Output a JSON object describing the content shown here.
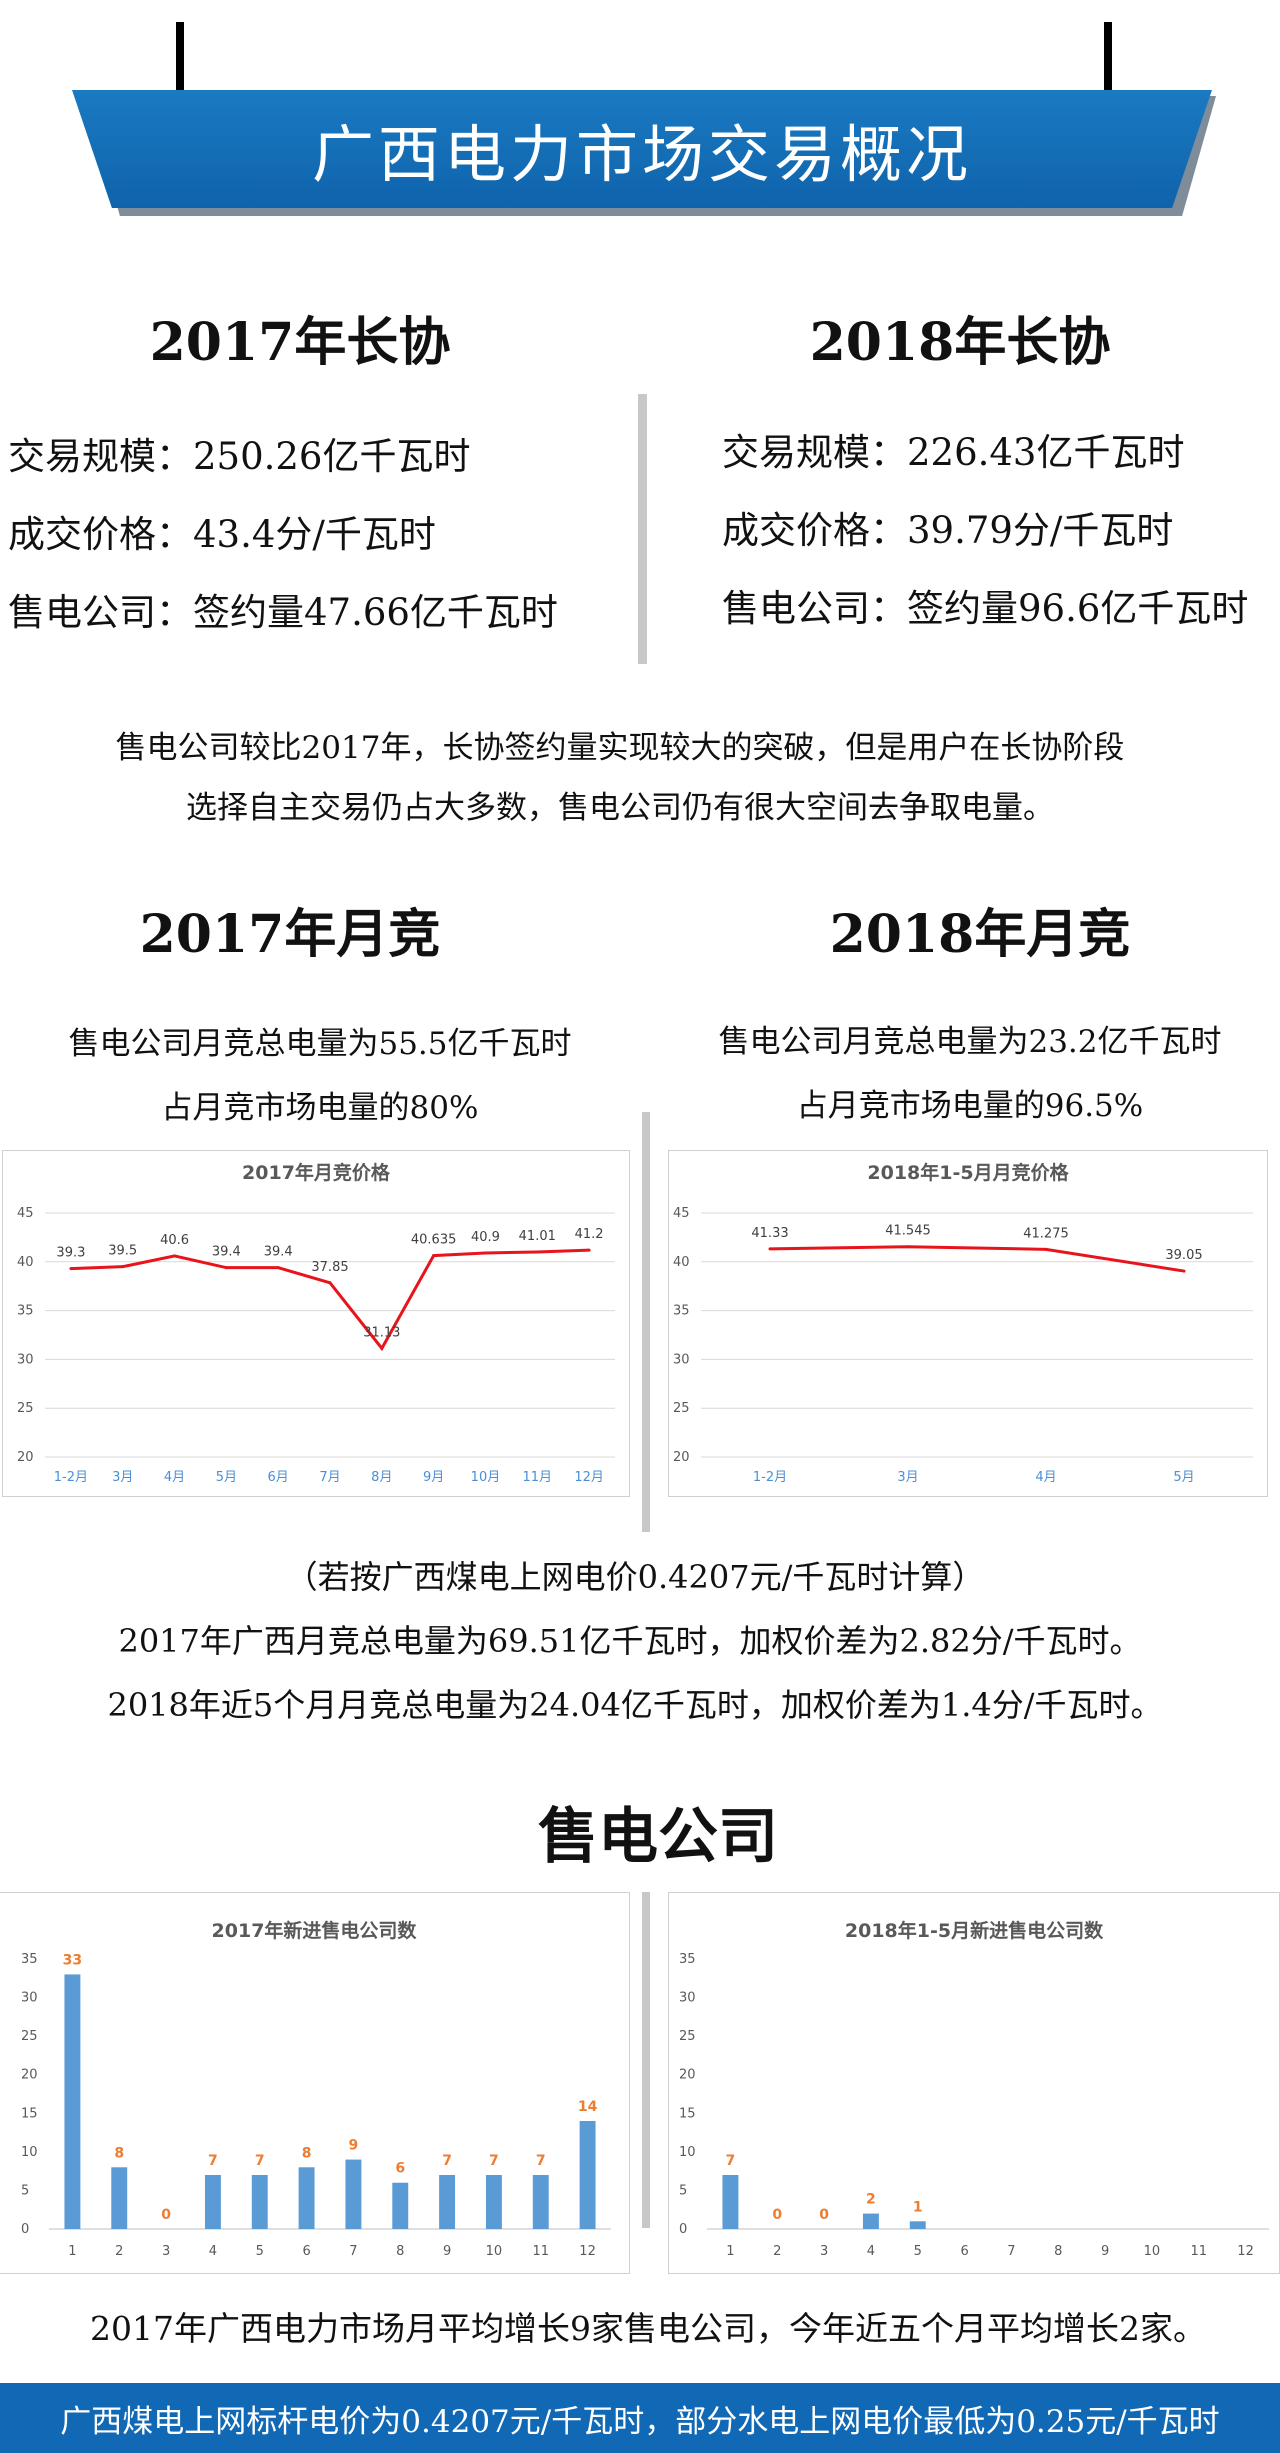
{
  "banner": {
    "title": "广西电力市场交易概况"
  },
  "long_term": {
    "y2017": {
      "heading": "2017年长协",
      "scale": "交易规模：250.26亿千瓦时",
      "price": "成交价格：43.4分/千瓦时",
      "retail": "售电公司：签约量47.66亿千瓦时"
    },
    "y2018": {
      "heading": "2018年长协",
      "scale": "交易规模：226.43亿千瓦时",
      "price": "成交价格：39.79分/千瓦时",
      "retail": "售电公司：签约量96.6亿千瓦时"
    },
    "comment_line1": "售电公司较比2017年，长协签约量实现较大的突破，但是用户在长协阶段",
    "comment_line2": "选择自主交易仍占大多数，售电公司仍有很大空间去争取电量。"
  },
  "monthly": {
    "y2017": {
      "heading": "2017年月竞",
      "line1": "售电公司月竞总电量为55.5亿千瓦时",
      "line2": "占月竞市场电量的80%"
    },
    "y2018": {
      "heading": "2018年月竞",
      "line1": "售电公司月竞总电量为23.2亿千瓦时",
      "line2": "占月竞市场电量的96.5%"
    },
    "note1": "（若按广西煤电上网电价0.4207元/千瓦时计算）",
    "note2": "2017年广西月竞总电量为69.51亿千瓦时，加权价差为2.82分/千瓦时。",
    "note3": "2018年近5个月月竞总电量为24.04亿千瓦时，加权价差为1.4分/千瓦时。"
  },
  "retailers": {
    "heading": "售电公司",
    "summary": "2017年广西电力市场月平均增长9家售电公司，今年近五个月平均增长2家。"
  },
  "footer": {
    "text": "广西煤电上网标杆电价为0.4207元/千瓦时，部分水电上网电价最低为0.25元/千瓦时"
  },
  "chart_data": [
    {
      "type": "line",
      "title": "2017年月竞价格",
      "categories": [
        "1-2月",
        "3月",
        "4月",
        "5月",
        "6月",
        "7月",
        "8月",
        "9月",
        "10月",
        "11月",
        "12月"
      ],
      "values": [
        39.3,
        39.5,
        40.6,
        39.4,
        39.4,
        37.85,
        31.13,
        40.635,
        40.9,
        41.01,
        41.2
      ],
      "labels": [
        "39.3",
        "39.5",
        "40.6",
        "39.4",
        "39.4",
        "37.85",
        "31.13",
        "40.635",
        "40.9",
        "41.01",
        "41.2"
      ],
      "yticks": [
        20,
        25,
        30,
        35,
        40,
        45
      ],
      "ylim": [
        20,
        45
      ],
      "color": "#e8141c",
      "grid": true
    },
    {
      "type": "line",
      "title": "2018年1-5月月竞价格",
      "categories": [
        "1-2月",
        "3月",
        "4月",
        "5月"
      ],
      "values": [
        41.33,
        41.545,
        41.275,
        39.05
      ],
      "labels": [
        "41.33",
        "41.545",
        "41.275",
        "39.05"
      ],
      "yticks": [
        20,
        25,
        30,
        35,
        40,
        45
      ],
      "ylim": [
        20,
        45
      ],
      "color": "#e8141c",
      "grid": true
    },
    {
      "type": "bar",
      "title": "2017年新进售电公司数",
      "categories": [
        "1",
        "2",
        "3",
        "4",
        "5",
        "6",
        "7",
        "8",
        "9",
        "10",
        "11",
        "12"
      ],
      "values": [
        33,
        8,
        0,
        7,
        7,
        8,
        9,
        6,
        7,
        7,
        7,
        14
      ],
      "labels": [
        "33",
        "8",
        "0",
        "7",
        "7",
        "8",
        "9",
        "6",
        "7",
        "7",
        "7",
        "14"
      ],
      "yticks": [
        0,
        5,
        10,
        15,
        20,
        25,
        30,
        35
      ],
      "ylim": [
        0,
        35
      ],
      "color": "#5b9bd5",
      "grid": false
    },
    {
      "type": "bar",
      "title": "2018年1-5月新进售电公司数",
      "categories": [
        "1",
        "2",
        "3",
        "4",
        "5",
        "6",
        "7",
        "8",
        "9",
        "10",
        "11",
        "12"
      ],
      "values": [
        7,
        0,
        0,
        2,
        1
      ],
      "labels": [
        "7",
        "0",
        "0",
        "2",
        "1"
      ],
      "yticks": [
        0,
        5,
        10,
        15,
        20,
        25,
        30,
        35
      ],
      "ylim": [
        0,
        35
      ],
      "color": "#5b9bd5",
      "grid": false
    }
  ]
}
